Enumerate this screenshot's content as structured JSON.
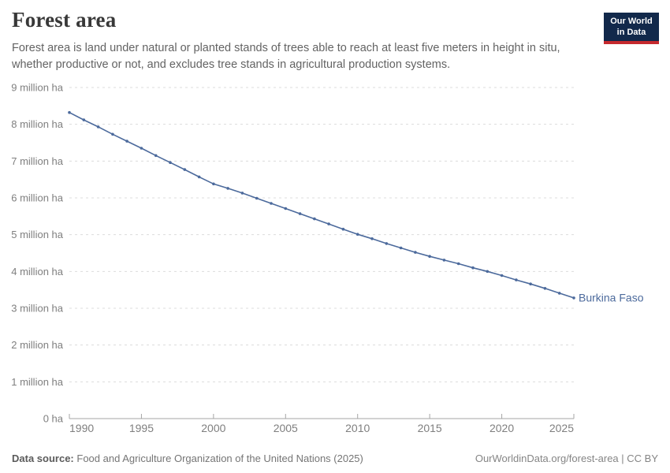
{
  "header": {
    "title": "Forest area",
    "subtitle": "Forest area is land under natural or planted stands of trees able to reach at least five meters in height in situ, whether productive or not, and excludes tree stands in agricultural production systems.",
    "logo": {
      "line1": "Our World",
      "line2": "in Data",
      "bg_color": "#12294B",
      "accent_color": "#C5292E"
    }
  },
  "chart_data": {
    "type": "line",
    "title": "Forest area",
    "unit": "ha",
    "grid": true,
    "legend_position": "end-of-line-label",
    "xlim": [
      1990,
      2025
    ],
    "ylim_million_ha": [
      0,
      9
    ],
    "x_ticks": [
      1990,
      1995,
      2000,
      2005,
      2010,
      2015,
      2020,
      2025
    ],
    "y_ticks": [
      {
        "value": 0,
        "label": "0 ha"
      },
      {
        "value": 1,
        "label": "1 million ha"
      },
      {
        "value": 2,
        "label": "2 million ha"
      },
      {
        "value": 3,
        "label": "3 million ha"
      },
      {
        "value": 4,
        "label": "4 million ha"
      },
      {
        "value": 5,
        "label": "5 million ha"
      },
      {
        "value": 6,
        "label": "6 million ha"
      },
      {
        "value": 7,
        "label": "7 million ha"
      },
      {
        "value": 8,
        "label": "8 million ha"
      },
      {
        "value": 9,
        "label": "9 million ha"
      }
    ],
    "x": [
      1990,
      1991,
      1992,
      1993,
      1994,
      1995,
      1996,
      1997,
      1998,
      1999,
      2000,
      2001,
      2002,
      2003,
      2004,
      2005,
      2006,
      2007,
      2008,
      2009,
      2010,
      2011,
      2012,
      2013,
      2014,
      2015,
      2016,
      2017,
      2018,
      2019,
      2020,
      2021,
      2022,
      2023,
      2024,
      2025
    ],
    "series": [
      {
        "name": "Burkina Faso",
        "color": "#4C6A9C",
        "unit": "million ha",
        "values": [
          8.32,
          8.12,
          7.93,
          7.73,
          7.54,
          7.35,
          7.15,
          6.96,
          6.77,
          6.57,
          6.38,
          6.26,
          6.13,
          5.99,
          5.85,
          5.71,
          5.57,
          5.43,
          5.29,
          5.15,
          5.01,
          4.89,
          4.76,
          4.64,
          4.52,
          4.41,
          4.31,
          4.21,
          4.1,
          4.0,
          3.89,
          3.77,
          3.66,
          3.54,
          3.41,
          3.28
        ]
      }
    ]
  },
  "footer": {
    "source_label": "Data source:",
    "source_text": "Food and Agriculture Organization of the United Nations (2025)",
    "right_text": "OurWorldinData.org/forest-area | CC BY"
  }
}
